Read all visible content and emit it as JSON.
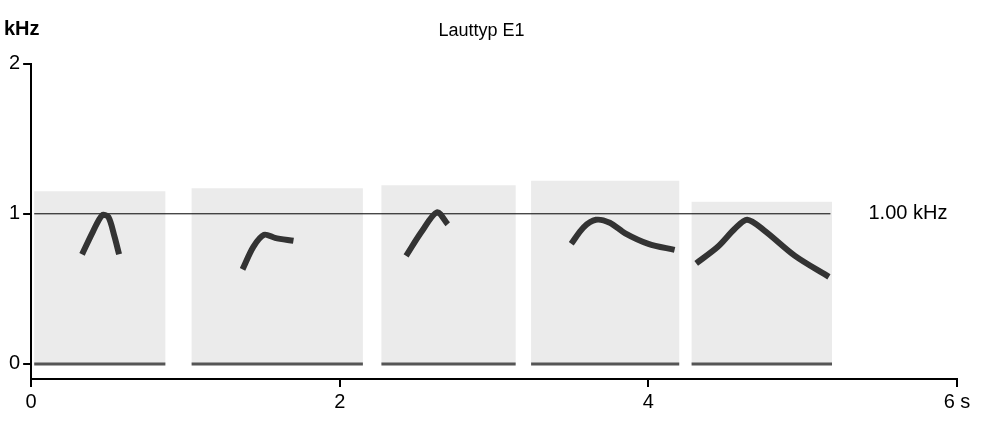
{
  "chart_data": {
    "type": "line",
    "title": "Lauttyp E1",
    "y_label": "kHz",
    "xlim": [
      0,
      6
    ],
    "xticks": [
      0,
      2,
      4,
      {
        "value": 6,
        "label": "6 s"
      }
    ],
    "ylim": [
      -0.1,
      2
    ],
    "yticks": [
      0,
      1,
      2
    ],
    "grid": false,
    "panels": [
      {
        "x": [
          0.02,
          0.87
        ],
        "top": 1.15
      },
      {
        "x": [
          1.04,
          2.15
        ],
        "top": 1.17
      },
      {
        "x": [
          2.27,
          3.14
        ],
        "top": 1.19
      },
      {
        "x": [
          3.24,
          4.2
        ],
        "top": 1.22
      },
      {
        "x": [
          4.28,
          5.19
        ],
        "top": 1.08
      }
    ],
    "series": [
      {
        "color": "#333333",
        "x": [
          0.33,
          0.4,
          0.46,
          0.5,
          0.54,
          0.57
        ],
        "values": [
          0.73,
          0.88,
          0.99,
          0.98,
          0.85,
          0.73
        ]
      },
      {
        "color": "#333333",
        "x": [
          1.37,
          1.44,
          1.51,
          1.58,
          1.7
        ],
        "values": [
          0.63,
          0.78,
          0.86,
          0.84,
          0.82
        ]
      },
      {
        "color": "#333333",
        "x": [
          2.43,
          2.53,
          2.63,
          2.7
        ],
        "values": [
          0.72,
          0.88,
          1.01,
          0.93
        ]
      },
      {
        "color": "#333333",
        "x": [
          3.5,
          3.58,
          3.66,
          3.75,
          3.85,
          4.0,
          4.17
        ],
        "values": [
          0.8,
          0.91,
          0.96,
          0.94,
          0.87,
          0.8,
          0.76
        ]
      },
      {
        "color": "#333333",
        "x": [
          4.31,
          4.45,
          4.56,
          4.64,
          4.75,
          4.95,
          5.17
        ],
        "values": [
          0.67,
          0.78,
          0.9,
          0.96,
          0.89,
          0.72,
          0.58
        ]
      }
    ],
    "reference_line": {
      "value": 1,
      "label": "1.00 kHz",
      "x": [
        0.02,
        5.18
      ]
    }
  }
}
